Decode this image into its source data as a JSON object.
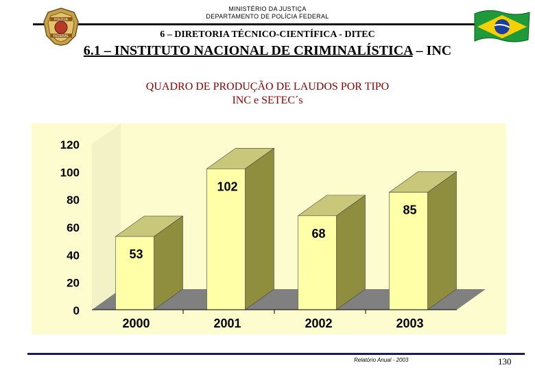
{
  "header": {
    "ministry": "MINISTÉRIO DA JUSTIÇA",
    "department": "DEPARTAMENTO DE POLÍCIA FEDERAL",
    "section": "6 – DIRETORIA TÉCNICO-CIENTÍFICA - DITEC",
    "subsection_main": "6.1 – INSTITUTO NACIONAL DE CRIMINALÍSTICA",
    "subsection_tail": " – INC",
    "logo_text_top": "POLÍCIA",
    "logo_text_bottom": "FEDERAL"
  },
  "chart_title": {
    "line1": "QUADRO DE PRODUÇÃO DE LAUDOS POR TIPO",
    "line2": "INC e SETEC´s"
  },
  "chart_data": {
    "type": "bar",
    "title": "QUADRO DE PRODUÇÃO DE LAUDOS POR TIPO INC e SETEC´s",
    "categories": [
      "2000",
      "2001",
      "2002",
      "2003"
    ],
    "values": [
      53,
      102,
      68,
      85
    ],
    "data_labels": [
      "53",
      "102",
      "68",
      "85"
    ],
    "ylim": [
      0,
      120
    ],
    "yticks": [
      0,
      20,
      40,
      60,
      80,
      100,
      120
    ],
    "xlabel": "",
    "ylabel": "",
    "style": "3d",
    "grid": false,
    "legend": "none"
  },
  "footer": {
    "note": "Relatório Anual - 2003",
    "page": "130"
  },
  "colors": {
    "bar_front": "#ffffa8",
    "bar_side": "#8f8d3e",
    "bar_top": "#c9c77a",
    "back_wall": "#fdfccf",
    "floor": "#808080",
    "title_red": "#8b0000",
    "flag_green": "#1f9a3a",
    "flag_yellow": "#f5d000",
    "flag_blue": "#1b3f9c",
    "badge_gold": "#c8a24a"
  }
}
